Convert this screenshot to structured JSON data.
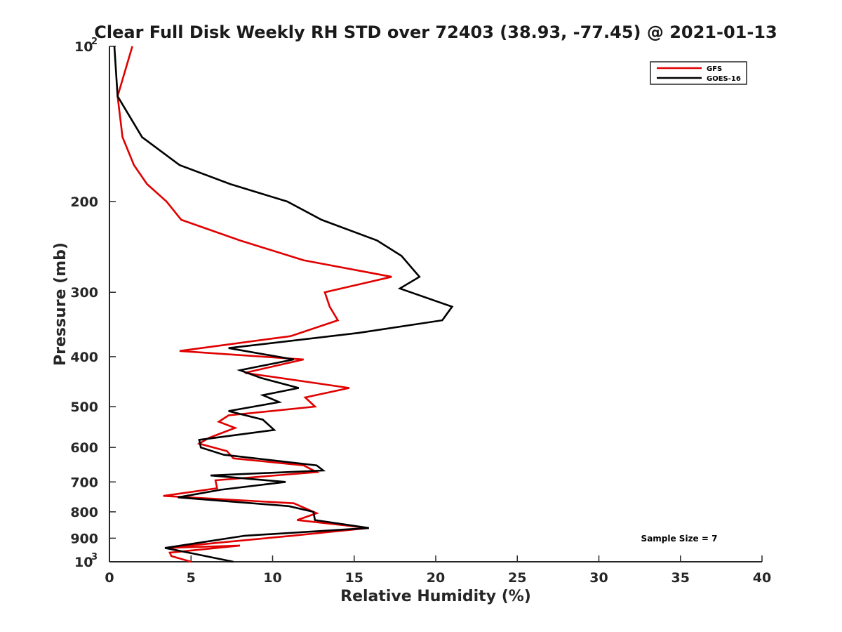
{
  "chart_data": {
    "type": "line",
    "title": "Clear Full Disk Weekly RH STD over 72403 (38.93, -77.45) @ 2021-01-13",
    "xlabel": "Relative Humidity (%)",
    "ylabel": "Pressure (mb)",
    "xlim": [
      0,
      40
    ],
    "ylim": [
      100,
      1000
    ],
    "y_scale": "log",
    "y_reversed": true,
    "x_ticks": [
      "0",
      "5",
      "10",
      "15",
      "20",
      "25",
      "30",
      "35",
      "40"
    ],
    "y_ticks": [
      {
        "value": 100,
        "base": "10",
        "exp": "2"
      },
      {
        "value": 200,
        "label": "200"
      },
      {
        "value": 300,
        "label": "300"
      },
      {
        "value": 400,
        "label": "400"
      },
      {
        "value": 500,
        "label": "500"
      },
      {
        "value": 600,
        "label": "600"
      },
      {
        "value": 700,
        "label": "700"
      },
      {
        "value": 800,
        "label": "800"
      },
      {
        "value": 900,
        "label": "900"
      },
      {
        "value": 1000,
        "base": "10",
        "exp": "3"
      }
    ],
    "grid": false,
    "legend_position": "top-right",
    "annotation": "Sample Size = 7",
    "series": [
      {
        "name": "GFS",
        "color": "#e00000",
        "points": [
          [
            1.4,
            100
          ],
          [
            0.5,
            125
          ],
          [
            0.8,
            150
          ],
          [
            1.5,
            170
          ],
          [
            2.3,
            185
          ],
          [
            3.5,
            200
          ],
          [
            4.4,
            217
          ],
          [
            8.0,
            238
          ],
          [
            11.9,
            260
          ],
          [
            17.3,
            280
          ],
          [
            13.2,
            300
          ],
          [
            13.5,
            320
          ],
          [
            14.0,
            340
          ],
          [
            11.1,
            365
          ],
          [
            4.3,
            390
          ],
          [
            11.9,
            405
          ],
          [
            8.3,
            430
          ],
          [
            14.7,
            460
          ],
          [
            12.0,
            480
          ],
          [
            12.6,
            500
          ],
          [
            7.3,
            520
          ],
          [
            6.7,
            535
          ],
          [
            7.7,
            550
          ],
          [
            6.1,
            575
          ],
          [
            5.5,
            590
          ],
          [
            7.2,
            610
          ],
          [
            7.6,
            630
          ],
          [
            11.9,
            650
          ],
          [
            12.7,
            670
          ],
          [
            6.5,
            695
          ],
          [
            6.6,
            720
          ],
          [
            3.3,
            745
          ],
          [
            11.3,
            770
          ],
          [
            12.7,
            805
          ],
          [
            11.5,
            830
          ],
          [
            15.9,
            860
          ],
          [
            11.2,
            890
          ],
          [
            6.4,
            920
          ],
          [
            3.5,
            940
          ],
          [
            8.0,
            930
          ],
          [
            3.7,
            960
          ],
          [
            3.8,
            975
          ],
          [
            5.0,
            1000
          ]
        ]
      },
      {
        "name": "GOES-16",
        "color": "#000000",
        "points": [
          [
            0.3,
            100
          ],
          [
            0.5,
            125
          ],
          [
            2.0,
            150
          ],
          [
            4.3,
            170
          ],
          [
            7.4,
            185
          ],
          [
            10.9,
            200
          ],
          [
            13.0,
            217
          ],
          [
            16.4,
            238
          ],
          [
            17.9,
            255
          ],
          [
            19.0,
            280
          ],
          [
            17.8,
            295
          ],
          [
            21.0,
            320
          ],
          [
            20.4,
            340
          ],
          [
            15.2,
            360
          ],
          [
            7.3,
            385
          ],
          [
            11.3,
            405
          ],
          [
            8.0,
            425
          ],
          [
            9.3,
            440
          ],
          [
            11.6,
            460
          ],
          [
            9.4,
            475
          ],
          [
            10.4,
            490
          ],
          [
            7.3,
            510
          ],
          [
            9.4,
            530
          ],
          [
            10.1,
            555
          ],
          [
            5.5,
            580
          ],
          [
            5.6,
            600
          ],
          [
            7.0,
            620
          ],
          [
            12.7,
            650
          ],
          [
            13.1,
            665
          ],
          [
            6.2,
            680
          ],
          [
            10.8,
            700
          ],
          [
            6.8,
            725
          ],
          [
            4.2,
            750
          ],
          [
            11.0,
            780
          ],
          [
            12.5,
            800
          ],
          [
            12.6,
            830
          ],
          [
            15.9,
            860
          ],
          [
            8.3,
            890
          ],
          [
            3.4,
            940
          ],
          [
            5.2,
            965
          ],
          [
            7.6,
            1000
          ]
        ]
      }
    ]
  }
}
